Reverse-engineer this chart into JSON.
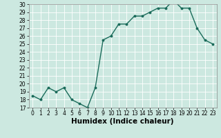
{
  "x": [
    0,
    1,
    2,
    3,
    4,
    5,
    6,
    7,
    8,
    9,
    10,
    11,
    12,
    13,
    14,
    15,
    16,
    17,
    18,
    19,
    20,
    21,
    22,
    23
  ],
  "y": [
    18.5,
    18.0,
    19.5,
    19.0,
    19.5,
    18.0,
    17.5,
    17.0,
    19.5,
    25.5,
    26.0,
    27.5,
    27.5,
    28.5,
    28.5,
    29.0,
    29.5,
    29.5,
    30.5,
    29.5,
    29.5,
    27.0,
    25.5,
    25.0
  ],
  "line_color": "#1a6b5a",
  "marker": "o",
  "marker_size": 1.8,
  "bg_color": "#cce8e0",
  "grid_color": "#ffffff",
  "xlabel": "Humidex (Indice chaleur)",
  "ylim": [
    17,
    30
  ],
  "xlim": [
    -0.5,
    23.5
  ],
  "yticks": [
    17,
    18,
    19,
    20,
    21,
    22,
    23,
    24,
    25,
    26,
    27,
    28,
    29,
    30
  ],
  "xticks": [
    0,
    1,
    2,
    3,
    4,
    5,
    6,
    7,
    8,
    9,
    10,
    11,
    12,
    13,
    14,
    15,
    16,
    17,
    18,
    19,
    20,
    21,
    22,
    23
  ],
  "tick_fontsize": 5.5,
  "xlabel_fontsize": 7.5,
  "line_width": 1.0
}
